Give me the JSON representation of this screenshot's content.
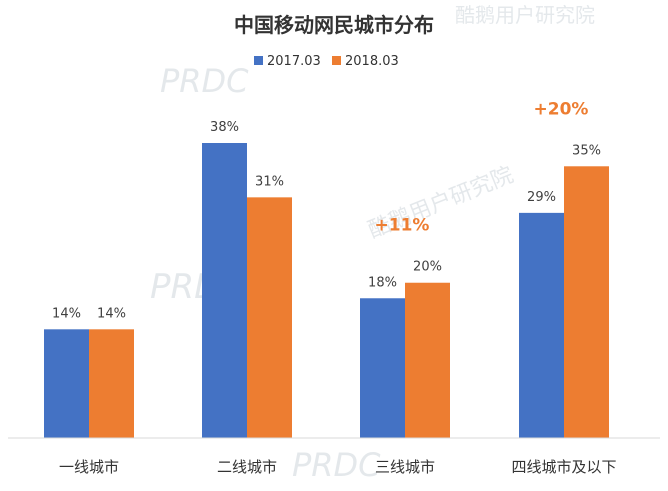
{
  "chart_data": {
    "type": "bar",
    "title": "中国移动网民城市分布",
    "categories": [
      "一线城市",
      "二线城市",
      "三线城市",
      "四线城市及以下"
    ],
    "series": [
      {
        "name": "2017.03",
        "color": "#4472C4",
        "values": [
          14,
          38,
          18,
          29
        ],
        "labels": [
          "14%",
          "38%",
          "18%",
          "29%"
        ]
      },
      {
        "name": "2018.03",
        "color": "#ED7D31",
        "values": [
          14,
          31,
          20,
          35
        ],
        "labels": [
          "14%",
          "31%",
          "20%",
          "35%"
        ]
      }
    ],
    "annotations": [
      {
        "category": "三线城市",
        "text": "+11%"
      },
      {
        "category": "四线城市及以下",
        "text": "+20%"
      }
    ],
    "ylim": [
      0,
      38
    ],
    "grid": false,
    "legend": "top-center",
    "xlabel": "",
    "ylabel": ""
  },
  "watermarks": [
    "酷鹅用户研究院",
    "PRDC"
  ]
}
